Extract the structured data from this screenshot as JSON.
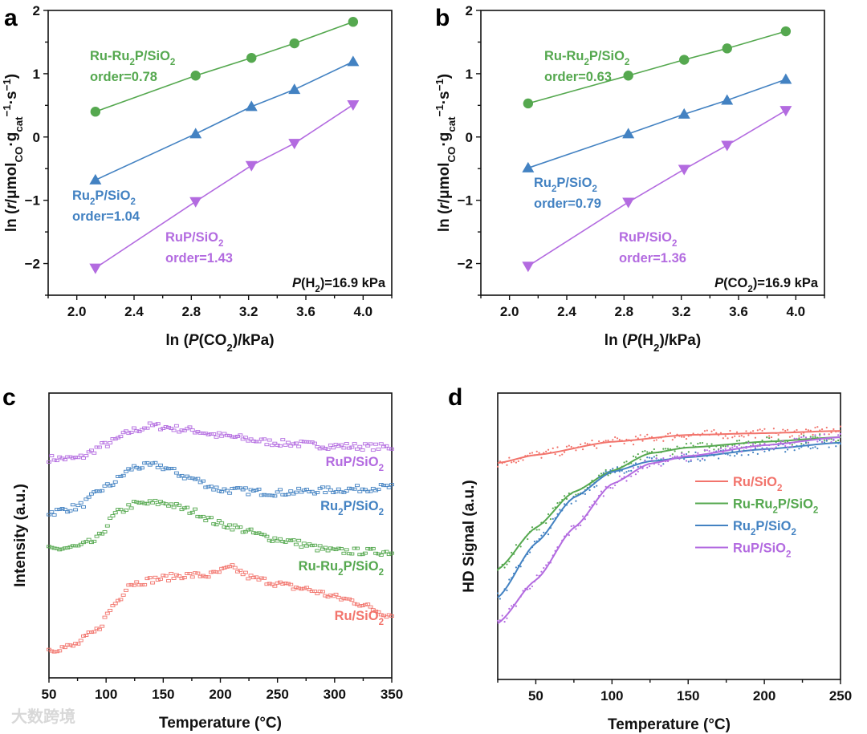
{
  "colors": {
    "green": "#55a84f",
    "blue": "#4382c2",
    "purple": "#b36be0",
    "red": "#f2746c",
    "axis": "#111111"
  },
  "watermark": "大数跨境",
  "chart_data": [
    {
      "panel": "a",
      "type": "line",
      "xlabel": "ln (*P*(CO_{2})/kPa)",
      "ylabel": "ln (*r*/μmol_{CO}·g_{cat}^{−1}·s^{−1})",
      "xlim": [
        1.8,
        4.2
      ],
      "ylim": [
        -2.5,
        2
      ],
      "xticks": [
        "2.0",
        "2.4",
        "2.8",
        "3.2",
        "3.6",
        "4.0"
      ],
      "yticks": [
        "−2",
        "−1",
        "0",
        "1",
        "2"
      ],
      "x": [
        2.13,
        2.83,
        3.22,
        3.52,
        3.93
      ],
      "condition": "*P*(H_{2})=16.9 kPa",
      "series": [
        {
          "name": "Ru-Ru_{2}P/SiO_{2}",
          "order_text": "order=0.78",
          "color": "green",
          "marker": "circle",
          "values": [
            0.4,
            0.97,
            1.25,
            1.48,
            1.82
          ]
        },
        {
          "name": "Ru_{2}P/SiO_{2}",
          "order_text": "order=1.04",
          "color": "blue",
          "marker": "triangle-up",
          "values": [
            -0.68,
            0.05,
            0.48,
            0.75,
            1.19
          ]
        },
        {
          "name": "RuP/SiO_{2}",
          "order_text": "order=1.43",
          "color": "purple",
          "marker": "triangle-down",
          "values": [
            -2.07,
            -1.02,
            -0.45,
            -0.1,
            0.51
          ]
        }
      ]
    },
    {
      "panel": "b",
      "type": "line",
      "xlabel": "ln (*P*(H_{2})/kPa)",
      "ylabel": "ln (*r*/μmol_{CO}·g_{cat}^{−1}·s^{−1})",
      "xlim": [
        1.8,
        4.2
      ],
      "ylim": [
        -2.5,
        2
      ],
      "xticks": [
        "2.0",
        "2.4",
        "2.8",
        "3.2",
        "3.6",
        "4.0"
      ],
      "yticks": [
        "−2",
        "−1",
        "0",
        "1",
        "2"
      ],
      "x": [
        2.13,
        2.83,
        3.22,
        3.52,
        3.93
      ],
      "condition": "*P*(CO_{2})=16.9 kPa",
      "series": [
        {
          "name": "Ru-Ru_{2}P/SiO_{2}",
          "order_text": "order=0.63",
          "color": "green",
          "marker": "circle",
          "values": [
            0.53,
            0.97,
            1.22,
            1.4,
            1.67
          ]
        },
        {
          "name": "Ru_{2}P/SiO_{2}",
          "order_text": "order=0.79",
          "color": "blue",
          "marker": "triangle-up",
          "values": [
            -0.49,
            0.05,
            0.36,
            0.58,
            0.91
          ]
        },
        {
          "name": "RuP/SiO_{2}",
          "order_text": "order=1.36",
          "color": "purple",
          "marker": "triangle-down",
          "values": [
            -2.04,
            -1.03,
            -0.51,
            -0.13,
            0.42
          ]
        }
      ]
    },
    {
      "panel": "c",
      "type": "line",
      "xlabel": "Temperature (°C)",
      "ylabel": "Intensity (a.u.)",
      "xlim": [
        50,
        350
      ],
      "ylim": [
        0,
        100
      ],
      "xticks": [
        "50",
        "100",
        "150",
        "200",
        "250",
        "300",
        "350"
      ],
      "series": [
        {
          "name": "RuP/SiO_{2}",
          "color": "purple",
          "x": [
            50,
            75,
            100,
            125,
            140,
            175,
            200,
            250,
            300,
            350
          ],
          "values": [
            77,
            77,
            82,
            87,
            88.5,
            87,
            85,
            82.5,
            81.4,
            81
          ]
        },
        {
          "name": "Ru_{2}P/SiO_{2}",
          "color": "blue",
          "x": [
            50,
            75,
            100,
            125,
            145,
            175,
            200,
            250,
            300,
            350
          ],
          "values": [
            58,
            60,
            67,
            74,
            74.6,
            70,
            66,
            65,
            66,
            67
          ]
        },
        {
          "name": "Ru-Ru_{2}P/SiO_{2}",
          "color": "green",
          "x": [
            50,
            75,
            90,
            110,
            125,
            150,
            175,
            200,
            250,
            300,
            350
          ],
          "values": [
            45,
            46,
            48,
            58,
            61,
            61.5,
            58.6,
            54,
            48.7,
            44.5,
            44.2
          ]
        },
        {
          "name": "Ru/SiO_{2}",
          "color": "red",
          "x": [
            50,
            70,
            90,
            110,
            120,
            150,
            165,
            190,
            210,
            230,
            270,
            310,
            350
          ],
          "values": [
            10,
            11,
            16,
            27,
            33,
            35,
            36,
            36,
            38.6,
            34.7,
            31.5,
            27.6,
            22
          ]
        }
      ]
    },
    {
      "panel": "d",
      "type": "line",
      "xlabel": "Temperature (°C)",
      "ylabel": "HD Signal (a.u.)",
      "xlim": [
        25,
        250
      ],
      "ylim": [
        0,
        100
      ],
      "xticks": [
        "50",
        "100",
        "150",
        "200",
        "250"
      ],
      "legend": "center-right",
      "series": [
        {
          "name": "Ru/SiO_{2}",
          "color": "red",
          "x": [
            25,
            50,
            100,
            150,
            200,
            250
          ],
          "values": [
            75.6,
            78.4,
            83,
            85.4,
            86,
            86.8
          ]
        },
        {
          "name": "Ru-Ru_{2}P/SiO_{2}",
          "color": "green",
          "x": [
            25,
            50,
            75,
            100,
            125,
            150,
            200,
            250
          ],
          "values": [
            38.4,
            53,
            65.5,
            72.8,
            79,
            81,
            83,
            84.6
          ]
        },
        {
          "name": "Ru_{2}P/SiO_{2}",
          "color": "blue",
          "x": [
            25,
            50,
            75,
            100,
            125,
            150,
            200,
            250
          ],
          "values": [
            28.6,
            47.6,
            63.6,
            72.5,
            76.2,
            77.6,
            80.4,
            82.7
          ]
        },
        {
          "name": "RuP/SiO_{2}",
          "color": "purple",
          "x": [
            25,
            50,
            75,
            100,
            125,
            150,
            200,
            250
          ],
          "values": [
            19.6,
            34.7,
            53,
            68.3,
            75.4,
            78,
            81.8,
            84.6
          ]
        }
      ]
    }
  ]
}
